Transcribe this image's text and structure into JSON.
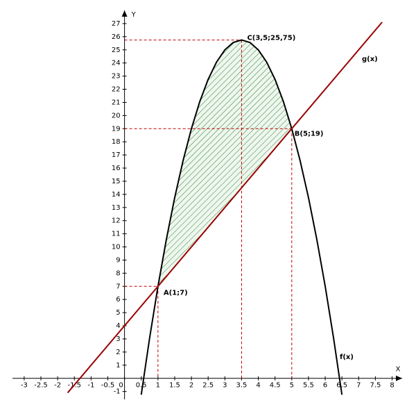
{
  "chart_data": {
    "type": "line",
    "x_label": "X",
    "y_label": "Y",
    "xlim": [
      -3.35,
      8.3
    ],
    "ylim": [
      -1.6,
      28
    ],
    "xticks": [
      -3,
      -2.5,
      -2,
      -1.5,
      -1,
      -0.5,
      0,
      0.5,
      1,
      1.5,
      2,
      2.5,
      3,
      3.5,
      4,
      4.5,
      5,
      5.5,
      6,
      6.5,
      7,
      7.5,
      8
    ],
    "yticks": [
      -1,
      1,
      2,
      3,
      4,
      5,
      6,
      7,
      8,
      9,
      10,
      11,
      12,
      13,
      14,
      15,
      16,
      17,
      18,
      19,
      20,
      21,
      22,
      23,
      24,
      25,
      26,
      27
    ],
    "grid": false,
    "series": [
      {
        "name": "f(x)",
        "color": "#000000",
        "x": [
          0.5,
          0.75,
          1,
          1.25,
          1.5,
          1.75,
          2,
          2.25,
          2.5,
          2.75,
          3,
          3.25,
          3.5,
          3.75,
          4,
          4.25,
          4.5,
          4.75,
          5,
          5.25,
          5.5,
          5.75,
          6,
          6.25,
          6.5
        ],
        "values": [
          -1.25,
          3.0625,
          7,
          10.5625,
          13.75,
          16.5625,
          19,
          21.0625,
          22.75,
          24.0625,
          25,
          25.5625,
          25.75,
          25.5625,
          25,
          24.0625,
          22.75,
          21.0625,
          19,
          16.5625,
          13.75,
          10.5625,
          7,
          3.0625,
          -1.25
        ]
      },
      {
        "name": "g(x)",
        "color": "#990000",
        "x": [
          -1.7,
          7.7
        ],
        "values": [
          -1.1,
          27.1
        ]
      }
    ],
    "points": [
      {
        "label": "A(1;7)",
        "x": 1,
        "y": 7
      },
      {
        "label": "B(5;19)",
        "x": 5,
        "y": 19
      },
      {
        "label": "C(3,5;25,75)",
        "x": 3.5,
        "y": 25.75
      }
    ]
  }
}
